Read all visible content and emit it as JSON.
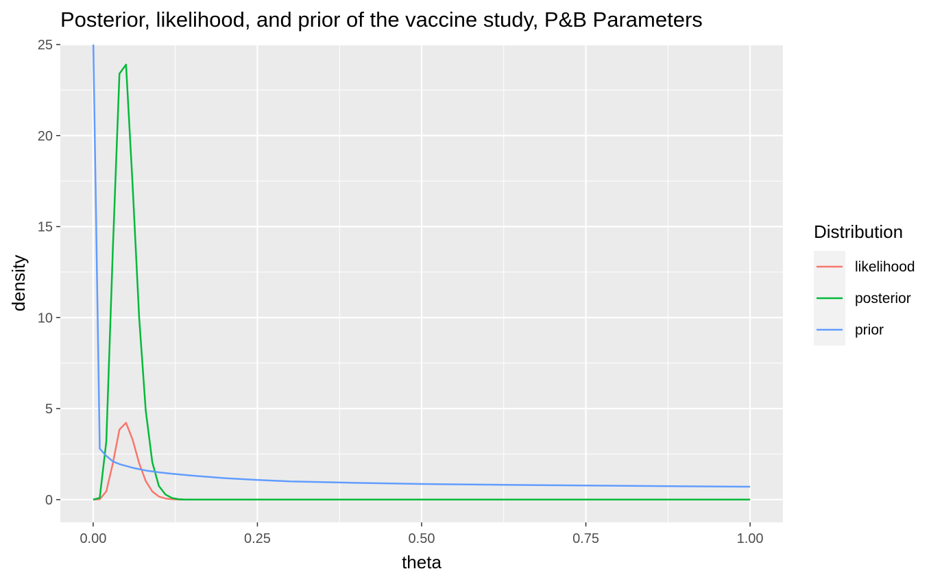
{
  "chart_data": {
    "type": "line",
    "title": "Posterior, likelihood, and prior of the vaccine study, P&B Parameters",
    "xlabel": "theta",
    "ylabel": "density",
    "xlim": [
      -0.05,
      1.05
    ],
    "ylim": [
      -1.25,
      25
    ],
    "x_ticks": [
      0,
      0.25,
      0.5,
      0.75,
      1
    ],
    "x_tick_labels": [
      "0.00",
      "0.25",
      "0.50",
      "0.75",
      "1.00"
    ],
    "y_ticks": [
      0,
      5,
      10,
      15,
      20,
      25
    ],
    "y_tick_labels": [
      "0",
      "5",
      "10",
      "15",
      "20",
      "25"
    ],
    "grid": true,
    "legend": {
      "title": "Distribution",
      "position": "right"
    },
    "series": [
      {
        "name": "likelihood",
        "color": "#F8766D",
        "x": [
          0.0,
          0.01,
          0.02,
          0.03,
          0.04,
          0.05,
          0.06,
          0.07,
          0.08,
          0.09,
          0.1,
          0.11,
          0.12,
          0.13,
          0.14,
          0.15,
          0.2,
          0.3,
          0.5,
          0.75,
          1.0
        ],
        "y": [
          0.0,
          0.02,
          0.45,
          2.0,
          3.85,
          4.22,
          3.3,
          2.0,
          1.02,
          0.45,
          0.17,
          0.06,
          0.02,
          0.005,
          0.0,
          0.0,
          0.0,
          0.0,
          0.0,
          0.0,
          0.0
        ]
      },
      {
        "name": "posterior",
        "color": "#00BA38",
        "x": [
          0.0,
          0.01,
          0.02,
          0.03,
          0.04,
          0.05,
          0.06,
          0.07,
          0.08,
          0.09,
          0.1,
          0.11,
          0.12,
          0.13,
          0.14,
          0.15,
          0.2,
          0.3,
          0.5,
          0.75,
          1.0
        ],
        "y": [
          0.0,
          0.1,
          3.2,
          13.8,
          23.4,
          23.9,
          17.3,
          10.0,
          4.9,
          2.05,
          0.75,
          0.28,
          0.09,
          0.02,
          0.0,
          0.0,
          0.0,
          0.0,
          0.0,
          0.0,
          0.0
        ]
      },
      {
        "name": "prior",
        "color": "#619CFF",
        "x": [
          0.0,
          0.01,
          0.02,
          0.03,
          0.04,
          0.05,
          0.06,
          0.08,
          0.1,
          0.12,
          0.15,
          0.2,
          0.25,
          0.3,
          0.4,
          0.5,
          0.6,
          0.7,
          0.8,
          0.9,
          1.0
        ],
        "y": [
          25.5,
          2.8,
          2.4,
          2.1,
          1.95,
          1.85,
          1.75,
          1.6,
          1.5,
          1.42,
          1.32,
          1.18,
          1.08,
          1.0,
          0.92,
          0.86,
          0.82,
          0.79,
          0.76,
          0.73,
          0.71
        ]
      }
    ]
  }
}
